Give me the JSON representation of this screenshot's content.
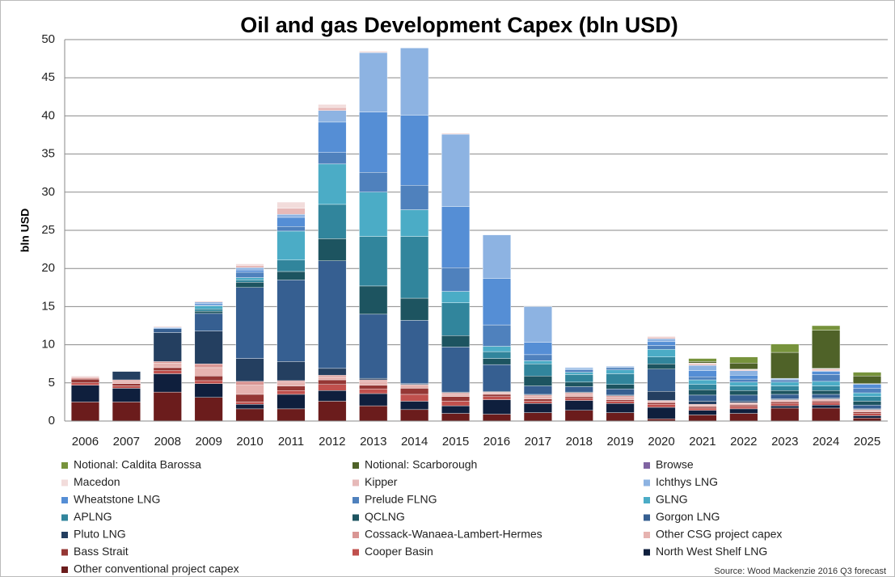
{
  "chart_data": {
    "type": "stacked_bar",
    "title": "Oil and gas Development Capex (bln USD)",
    "y_label": "bln USD",
    "source": "Source: Wood Mackenzie 2016 Q3 forecast",
    "categories": [
      "2006",
      "2007",
      "2008",
      "2009",
      "2010",
      "2011",
      "2012",
      "2013",
      "2014",
      "2015",
      "2016",
      "2017",
      "2018",
      "2019",
      "2020",
      "2021",
      "2022",
      "2023",
      "2024",
      "2025"
    ],
    "ylim": [
      0,
      50
    ],
    "yticks": [
      0,
      5,
      10,
      15,
      20,
      25,
      30,
      35,
      40,
      45,
      50
    ],
    "grid": true,
    "series": [
      {
        "name": "Notional: Caldita Barossa",
        "color": "#77933c",
        "values": [
          0,
          0,
          0,
          0,
          0,
          0,
          0,
          0,
          0,
          0,
          0,
          0,
          0,
          0,
          0,
          0.4,
          0.8,
          1.1,
          0.6,
          0.5
        ]
      },
      {
        "name": "Notional: Scarborough",
        "color": "#4f6228",
        "values": [
          0,
          0,
          0,
          0,
          0,
          0,
          0,
          0,
          0,
          0,
          0,
          0,
          0,
          0,
          0,
          0.2,
          0.8,
          3.4,
          5.0,
          1.0
        ]
      },
      {
        "name": "Browse",
        "color": "#8064a2",
        "values": [
          0,
          0,
          0,
          0,
          0,
          0,
          0,
          0,
          0,
          0,
          0,
          0,
          0,
          0,
          0,
          0,
          0,
          0,
          0,
          0
        ]
      },
      {
        "name": "Macedon",
        "color": "#f2dcdb",
        "values": [
          0.2,
          0,
          0,
          0,
          0.2,
          0.8,
          0.4,
          0.1,
          0,
          0,
          0,
          0,
          0,
          0,
          0.1,
          0.1,
          0.1,
          0,
          0.1,
          0
        ]
      },
      {
        "name": "Kipper",
        "color": "#e6b9b8",
        "values": [
          0,
          0,
          0.1,
          0.1,
          0.3,
          0.8,
          0.4,
          0.1,
          0,
          0.1,
          0,
          0,
          0,
          0,
          0.2,
          0.2,
          0.1,
          0,
          0.2,
          0
        ]
      },
      {
        "name": "Ichthys LNG",
        "color": "#8db3e2",
        "values": [
          0,
          0,
          0.1,
          0.2,
          0.3,
          0.4,
          1.5,
          7.8,
          8.8,
          9.5,
          5.7,
          4.7,
          0.2,
          0.1,
          0.4,
          0.7,
          0.6,
          0.1,
          0.1,
          0.1
        ]
      },
      {
        "name": "Wheatstone LNG",
        "color": "#558ed5",
        "values": [
          0,
          0,
          0.1,
          0.2,
          0.3,
          1.2,
          4.0,
          7.9,
          9.2,
          8.0,
          6.1,
          1.6,
          0.1,
          0.1,
          0.5,
          0.8,
          0.5,
          0.1,
          0.4,
          0.5
        ]
      },
      {
        "name": "Prelude FLNG",
        "color": "#4f81bd",
        "values": [
          0,
          0,
          0,
          0.1,
          0.7,
          0.6,
          1.5,
          2.6,
          3.2,
          3.1,
          2.8,
          0.8,
          0.3,
          0.3,
          0.5,
          0.4,
          0.4,
          0.3,
          0.9,
          0.6
        ]
      },
      {
        "name": "GLNG",
        "color": "#4bacc6",
        "values": [
          0,
          0,
          0,
          0.4,
          0.3,
          3.8,
          5.3,
          5.8,
          3.5,
          1.5,
          0.7,
          0.4,
          0.3,
          0.5,
          1.0,
          0.6,
          0.5,
          0.5,
          0.6,
          0.5
        ]
      },
      {
        "name": "APLNG",
        "color": "#31859c",
        "values": [
          0,
          0,
          0,
          0.3,
          0.3,
          1.5,
          4.5,
          6.5,
          8.1,
          4.3,
          0.9,
          1.6,
          1.0,
          1.4,
          0.9,
          0.7,
          0.6,
          0.6,
          0.6,
          0.6
        ]
      },
      {
        "name": "QCLNG",
        "color": "#1d5460",
        "values": [
          0,
          0,
          0,
          0.3,
          0.7,
          1.1,
          2.9,
          3.7,
          2.9,
          1.5,
          0.8,
          1.3,
          0.6,
          0.6,
          0.7,
          0.7,
          0.6,
          0.5,
          0.5,
          0.5
        ]
      },
      {
        "name": "Gorgon LNG",
        "color": "#365f91",
        "values": [
          0,
          0,
          0.5,
          2.3,
          9.3,
          10.7,
          14.1,
          8.4,
          8.3,
          5.9,
          3.5,
          1.1,
          0.7,
          0.8,
          2.9,
          0.8,
          0.8,
          0.6,
          0.5,
          0.5
        ]
      },
      {
        "name": "Pluto LNG",
        "color": "#243f60",
        "values": [
          0,
          1.1,
          3.8,
          4.3,
          3.0,
          2.5,
          0.9,
          0.2,
          0.1,
          0.1,
          0.1,
          0.1,
          0.1,
          0.1,
          1.2,
          0.4,
          0.2,
          0.1,
          0.1,
          0.1
        ]
      },
      {
        "name": "Cossack-Wanaea-Lambert-Hermes",
        "color": "#d99694",
        "values": [
          0.2,
          0.2,
          0.2,
          0.5,
          0.5,
          0.2,
          0.2,
          0.2,
          0.1,
          0.2,
          0.1,
          0.2,
          0.2,
          0.2,
          0.1,
          0.1,
          0.1,
          0.1,
          0.1,
          0.1
        ]
      },
      {
        "name": "Other CSG project capex",
        "color": "#e6b3b0",
        "values": [
          0,
          0.3,
          0.6,
          1.1,
          1.2,
          0.5,
          0.4,
          0.5,
          0.4,
          0.3,
          0.2,
          0.3,
          0.3,
          0.3,
          0.2,
          0.2,
          0.2,
          0.2,
          0.2,
          0.2
        ]
      },
      {
        "name": "Bass Strait",
        "color": "#953735",
        "values": [
          0.5,
          0.3,
          0.4,
          0.6,
          1.0,
          0.6,
          0.6,
          0.5,
          0.8,
          0.6,
          0.3,
          0.3,
          0.2,
          0.2,
          0.2,
          0.2,
          0.2,
          0.2,
          0.2,
          0.2
        ]
      },
      {
        "name": "Cooper Basin",
        "color": "#c0504d",
        "values": [
          0.3,
          0.3,
          0.4,
          0.4,
          0.3,
          0.5,
          0.8,
          0.6,
          0.9,
          0.6,
          0.4,
          0.3,
          0.3,
          0.3,
          0.4,
          0.3,
          0.3,
          0.3,
          0.3,
          0.3
        ]
      },
      {
        "name": "North West Shelf LNG",
        "color": "#0f1f3d",
        "values": [
          2.2,
          1.8,
          2.4,
          1.8,
          0.6,
          1.9,
          1.4,
          1.6,
          1.1,
          1.0,
          1.9,
          1.2,
          1.3,
          1.2,
          1.5,
          0.6,
          0.6,
          0.3,
          0.4,
          0.3
        ]
      },
      {
        "name": "Other conventional project capex",
        "color": "#6b1c1c",
        "values": [
          2.5,
          2.5,
          3.8,
          3.1,
          1.6,
          1.6,
          2.6,
          2.0,
          1.5,
          1.0,
          0.9,
          1.1,
          1.4,
          1.1,
          0.3,
          0.8,
          1.0,
          1.7,
          1.7,
          0.4
        ]
      }
    ]
  }
}
